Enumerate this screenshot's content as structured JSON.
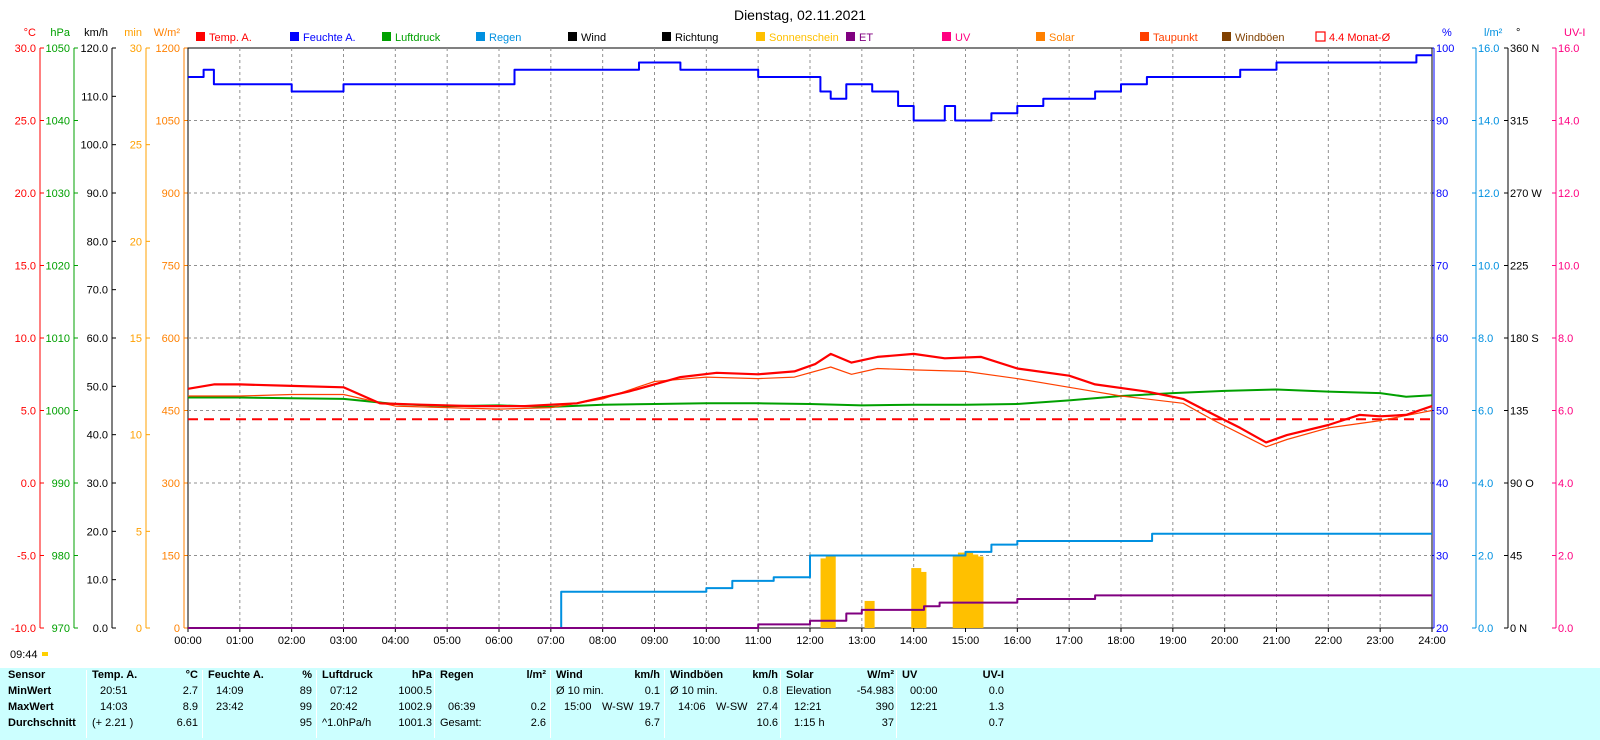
{
  "title": "Dienstag, 02.11.2021",
  "footer_time": "09:44",
  "legend": [
    {
      "label": "Temp. A.",
      "color": "#ff0000"
    },
    {
      "label": "Feuchte A.",
      "color": "#0000ff"
    },
    {
      "label": "Luftdruck",
      "color": "#00a000"
    },
    {
      "label": "Regen",
      "color": "#0090e0"
    },
    {
      "label": "Wind",
      "color": "#000000"
    },
    {
      "label": "Richtung",
      "color": "#000000"
    },
    {
      "label": "Sonnenschein",
      "color": "#ffc000"
    },
    {
      "label": "ET",
      "color": "#800080"
    },
    {
      "label": "UV",
      "color": "#ff0080"
    },
    {
      "label": "Solar",
      "color": "#ff8000"
    },
    {
      "label": "Taupunkt",
      "color": "#ff4000"
    },
    {
      "label": "Windböen",
      "color": "#804000"
    },
    {
      "label": "4.4 Monat-Ø",
      "color": "#ff0000"
    }
  ],
  "axes": {
    "temp": {
      "unit": "°C",
      "color": "#ff0000",
      "ticks": [
        "30.0",
        "25.0",
        "20.0",
        "15.0",
        "10.0",
        "5.0",
        "0.0",
        "-5.0",
        "-10.0"
      ]
    },
    "pressure": {
      "unit": "hPa",
      "color": "#00a000",
      "ticks": [
        "1050",
        "1040",
        "1030",
        "1020",
        "1010",
        "1000",
        "990",
        "980",
        "970"
      ]
    },
    "wind": {
      "unit": "km/h",
      "color": "#000000",
      "ticks": [
        "120.0",
        "110.0",
        "100.0",
        "90.0",
        "80.0",
        "70.0",
        "60.0",
        "50.0",
        "40.0",
        "30.0",
        "20.0",
        "10.0",
        "0.0"
      ]
    },
    "sunmin": {
      "unit": "min",
      "color": "#ffa000",
      "ticks": [
        "30",
        "25",
        "20",
        "15",
        "10",
        "5",
        "0"
      ]
    },
    "solar": {
      "unit": "W/m²",
      "color": "#ff8000",
      "ticks": [
        "1200",
        "1050",
        "900",
        "750",
        "600",
        "450",
        "300",
        "150",
        "0"
      ]
    },
    "humidity": {
      "unit": "%",
      "color": "#0000ff",
      "ticks": [
        "100",
        "90",
        "80",
        "70",
        "60",
        "50",
        "40",
        "30",
        "20"
      ]
    },
    "rain": {
      "unit": "l/m²",
      "color": "#0090e0",
      "ticks": [
        "16.0",
        "14.0",
        "12.0",
        "10.0",
        "8.0",
        "6.0",
        "4.0",
        "2.0",
        "0.0"
      ]
    },
    "direction": {
      "unit": "°",
      "color": "#000000",
      "ticks": [
        "360 N",
        "315",
        "270 W",
        "225",
        "180 S",
        "135",
        "90 O",
        "45",
        "0 N"
      ]
    },
    "uv": {
      "unit": "UV-I",
      "color": "#ff0080",
      "ticks": [
        "16.0",
        "14.0",
        "12.0",
        "10.0",
        "8.0",
        "6.0",
        "4.0",
        "2.0",
        "0.0"
      ]
    }
  },
  "chart_data": {
    "type": "line",
    "title": "Dienstag, 02.11.2021",
    "x_ticks": [
      "00:00",
      "01:00",
      "02:00",
      "03:00",
      "04:00",
      "05:00",
      "06:00",
      "07:00",
      "08:00",
      "09:00",
      "10:00",
      "11:00",
      "12:00",
      "13:00",
      "14:00",
      "15:00",
      "16:00",
      "17:00",
      "18:00",
      "19:00",
      "20:00",
      "21:00",
      "22:00",
      "23:00",
      "24:00"
    ],
    "x_range_hours": [
      0,
      24
    ],
    "grid": true,
    "legend_position": "top",
    "monthly_average_temp": 4.4,
    "series": [
      {
        "name": "Temp. A.",
        "axis": "temp",
        "x": [
          0,
          0.5,
          1,
          2,
          3,
          3.7,
          4.5,
          5.5,
          6.5,
          7.5,
          8.5,
          9.5,
          10.2,
          11,
          11.7,
          12.1,
          12.4,
          12.8,
          13.3,
          14,
          14.6,
          15.3,
          16,
          17,
          17.5,
          18.5,
          19.2,
          19.8,
          20.3,
          20.8,
          21.2,
          22,
          22.6,
          23,
          23.5,
          24
        ],
        "y": [
          6.5,
          6.8,
          6.8,
          6.7,
          6.6,
          5.5,
          5.4,
          5.3,
          5.3,
          5.5,
          6.3,
          7.3,
          7.6,
          7.5,
          7.7,
          8.2,
          8.9,
          8.3,
          8.7,
          8.9,
          8.6,
          8.7,
          7.9,
          7.4,
          6.8,
          6.3,
          5.8,
          4.7,
          3.8,
          2.8,
          3.3,
          4.0,
          4.7,
          4.6,
          4.7,
          5.3
        ]
      },
      {
        "name": "Taupunkt",
        "axis": "temp",
        "x": [
          0,
          1,
          2,
          3,
          4,
          5,
          6,
          7,
          8,
          9,
          10,
          11,
          11.7,
          12.4,
          12.8,
          13.3,
          14,
          15,
          16,
          17,
          18,
          19.2,
          19.8,
          20.3,
          20.8,
          21.2,
          22,
          23,
          24
        ],
        "y": [
          6.0,
          6.0,
          6.1,
          6.1,
          5.3,
          5.2,
          5.1,
          5.2,
          5.8,
          7.0,
          7.3,
          7.2,
          7.3,
          8.0,
          7.5,
          7.9,
          7.8,
          7.7,
          7.2,
          6.6,
          6.0,
          5.5,
          4.3,
          3.4,
          2.5,
          3.0,
          3.8,
          4.3,
          5.0
        ]
      },
      {
        "name": "Luftdruck",
        "axis": "pressure",
        "x": [
          0,
          1,
          2,
          3,
          4,
          5,
          6,
          7,
          8,
          9,
          10,
          11,
          12,
          13,
          14,
          15,
          16,
          17,
          18,
          19,
          20,
          21,
          22,
          23,
          23.5,
          24
        ],
        "y": [
          1001.8,
          1001.8,
          1001.7,
          1001.6,
          1000.9,
          1000.6,
          1000.7,
          1000.5,
          1000.8,
          1000.9,
          1001.0,
          1001.0,
          1000.9,
          1000.7,
          1000.8,
          1000.8,
          1000.9,
          1001.4,
          1002.0,
          1002.4,
          1002.7,
          1002.9,
          1002.6,
          1002.4,
          1001.9,
          1002.1
        ]
      },
      {
        "name": "Feuchte A.",
        "axis": "humidity",
        "x": [
          0,
          0.3,
          0.5,
          1,
          2,
          3,
          4,
          5,
          6,
          6.3,
          7,
          8,
          8.7,
          9.2,
          9.5,
          10.5,
          11,
          11.5,
          11.9,
          12.2,
          12.4,
          12.7,
          13.2,
          13.7,
          14,
          14.2,
          14.6,
          14.8,
          15.2,
          15.5,
          16,
          16.5,
          17,
          17.5,
          18,
          18.5,
          19,
          20,
          20.3,
          21,
          22,
          23,
          23.7,
          24
        ],
        "y": [
          96,
          97,
          95,
          95,
          94,
          95,
          95,
          95,
          95,
          97,
          97,
          97,
          98,
          98,
          97,
          97,
          96,
          96,
          96,
          94,
          93,
          95,
          94,
          92,
          90,
          90,
          92,
          90,
          90,
          91,
          92,
          93,
          93,
          94,
          95,
          96,
          96,
          96,
          97,
          98,
          98,
          98,
          99,
          99
        ]
      },
      {
        "name": "Regen",
        "axis": "rain",
        "x": [
          0,
          6.7,
          7.2,
          8.5,
          10,
          10.5,
          11.3,
          12,
          13,
          14,
          14.5,
          15,
          15.5,
          16,
          17,
          18,
          18.4,
          18.6,
          19,
          20,
          21,
          22,
          23,
          24
        ],
        "y": [
          0,
          0,
          1.0,
          1.0,
          1.1,
          1.3,
          1.4,
          2.0,
          2.0,
          2.0,
          2.0,
          2.1,
          2.3,
          2.4,
          2.4,
          2.4,
          2.4,
          2.6,
          2.6,
          2.6,
          2.6,
          2.6,
          2.6,
          2.6
        ]
      },
      {
        "name": "ET",
        "axis": "uv",
        "x": [
          0,
          9,
          10,
          11,
          12,
          12.7,
          13,
          14,
          14.2,
          14.5,
          15,
          16,
          17,
          17.5,
          18,
          19,
          20,
          21,
          22,
          23,
          24
        ],
        "y": [
          0,
          0,
          0,
          0.1,
          0.2,
          0.4,
          0.5,
          0.5,
          0.6,
          0.7,
          0.7,
          0.8,
          0.8,
          0.9,
          0.9,
          0.9,
          0.9,
          0.9,
          0.9,
          0.9,
          0.9
        ]
      },
      {
        "name": "Sonnenschein",
        "type": "bar",
        "axis": "sunmin",
        "x": [
          12.3,
          12.4,
          13.15,
          14.05,
          14.15,
          14.85,
          14.95,
          15.05,
          15.15,
          15.25
        ],
        "y": [
          3.6,
          3.8,
          1.4,
          3.1,
          2.9,
          3.8,
          3.9,
          3.9,
          3.8,
          3.7
        ]
      }
    ],
    "stats": {
      "headers": [
        {
          "sensor": "Temp. A.",
          "unit": "°C"
        },
        {
          "sensor": "Feuchte A.",
          "unit": "%"
        },
        {
          "sensor": "Luftdruck",
          "unit": "hPa"
        },
        {
          "sensor": "Regen",
          "unit": "l/m²"
        },
        {
          "sensor": "Wind",
          "unit": "km/h"
        },
        {
          "sensor": "Windböen",
          "unit": "km/h"
        },
        {
          "sensor": "Solar",
          "unit": "W/m²"
        },
        {
          "sensor": "UV",
          "unit": "UV-I"
        }
      ],
      "row_labels": [
        "Sensor",
        "MinWert",
        "MaxWert",
        "Durchschnitt"
      ],
      "temp": {
        "min_time": "20:51",
        "min": "2.7",
        "max_time": "14:03",
        "max": "8.9",
        "avg_note": "(+ 2.21 )",
        "avg": "6.61"
      },
      "humidity": {
        "min_time": "14:09",
        "min": "89",
        "max_time": "23:42",
        "max": "99",
        "avg": "95"
      },
      "pressure": {
        "min_time": "07:12",
        "min": "1000.5",
        "max_time": "20:42",
        "max": "1002.9",
        "avg_note": "^1.0hPa/h",
        "avg": "1001.3"
      },
      "rain": {
        "max_time": "06:39",
        "max": "0.2",
        "total_label": "Gesamt:",
        "total": "2.6"
      },
      "wind": {
        "min_label": "Ø 10 min.",
        "min": "0.1",
        "max_time": "15:00",
        "max_dir": "W-SW",
        "max": "19.7",
        "avg": "6.7"
      },
      "gusts": {
        "min_label": "Ø 10 min.",
        "min": "0.8",
        "max_time": "14:06",
        "max_dir": "W-SW",
        "max": "27.4",
        "avg": "10.6"
      },
      "solar": {
        "min_label": "Elevation",
        "min": "-54.983",
        "max_time": "12:21",
        "max": "390",
        "avg_label": "1:15 h",
        "avg": "37"
      },
      "uv": {
        "min_time": "00:00",
        "min": "0.0",
        "max_time": "12:21",
        "max": "1.3",
        "avg": "0.7"
      }
    }
  }
}
